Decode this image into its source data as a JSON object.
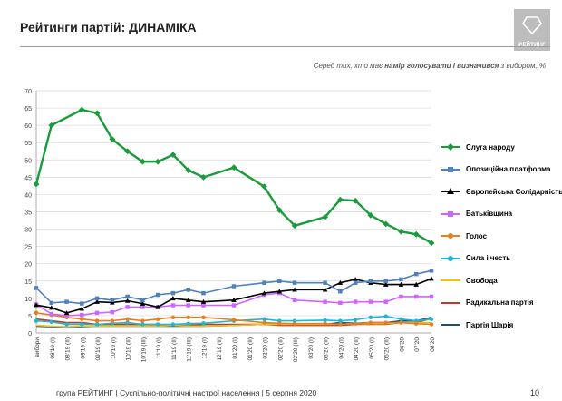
{
  "header": {
    "title": "Рейтинги партій: ДИНАМІКА",
    "subtitle_prefix": "Серед тих, хто має ",
    "subtitle_bold": "намір голосувати і визначився",
    "subtitle_suffix": " з вибором, %",
    "logo_text": "РЕЙТИНГ"
  },
  "footer": {
    "text": "група РЕЙТИНГ | Суспільно-політичні настрої населення | 5 серпня 2020",
    "page": "10"
  },
  "chart_data": {
    "type": "line",
    "ylim": [
      0,
      70
    ],
    "yticks": [
      "0",
      "5",
      "10",
      "15",
      "20",
      "25",
      "30",
      "35",
      "40",
      "45",
      "50",
      "55",
      "60",
      "65",
      "70"
    ],
    "grid": true,
    "legend_position": "right",
    "categories": [
      "вибори",
      "08'19 (I)",
      "08'19 (II)",
      "09'19 (I)",
      "09'19 (II)",
      "10'19 (I)",
      "10'19 (II)",
      "10'19 (III)",
      "11'19 (I)",
      "11'19 (II)",
      "11'19 (III)",
      "12'19 (I)",
      "12'19 (II)",
      "01'20 (I)",
      "01'20 (II)",
      "02'20 (I)",
      "02'20 (II)",
      "02'20 (III)",
      "03'20 (I)",
      "03'20 (II)",
      "04'20 (I)",
      "04'20 (II)",
      "05'20 (I)",
      "05'20 (II)",
      "06'20",
      "07'20",
      "08'20"
    ],
    "series": [
      {
        "name": "Слуга народу",
        "color": "#1a9b3c",
        "marker": "diamond",
        "values": [
          43,
          60,
          null,
          64.5,
          63.5,
          56,
          52.5,
          49.5,
          49.5,
          51.5,
          47,
          45,
          null,
          47.8,
          null,
          42.3,
          35.5,
          31,
          null,
          33.5,
          38.5,
          38.2,
          34,
          31.5,
          29.3,
          28.5,
          26
        ]
      },
      {
        "name": "Опозиційна платформа",
        "color": "#4f81bd",
        "marker": "square",
        "values": [
          13,
          8.7,
          9,
          8.5,
          10,
          9.5,
          10.5,
          9.5,
          11,
          11.5,
          12.5,
          11.5,
          null,
          13.5,
          null,
          14.5,
          15,
          14.5,
          null,
          14.5,
          12,
          14.5,
          15,
          15,
          15.5,
          17,
          18
        ]
      },
      {
        "name": "Європейська Солідарність",
        "color": "#000000",
        "marker": "triangle",
        "values": [
          8.1,
          7.3,
          5.8,
          7,
          9,
          8.8,
          9.3,
          8.5,
          7.5,
          10,
          9.5,
          9,
          null,
          9.5,
          null,
          11.5,
          12,
          12.5,
          null,
          12.5,
          14.5,
          15.5,
          14.5,
          14,
          14,
          14,
          15.7
        ]
      },
      {
        "name": "Батьківщина",
        "color": "#cc66ff",
        "marker": "square",
        "values": [
          8.2,
          5.5,
          5,
          5.2,
          5.8,
          6,
          7.5,
          7.5,
          7.5,
          8,
          8,
          8,
          null,
          8,
          null,
          11,
          11.5,
          9.5,
          null,
          9,
          8.7,
          9,
          9,
          9,
          10.5,
          10.5,
          10.5
        ]
      },
      {
        "name": "Голос",
        "color": "#e67e22",
        "marker": "circle",
        "values": [
          5.8,
          5.2,
          4.5,
          4,
          3.5,
          3.5,
          4,
          3.5,
          4,
          4.5,
          4.5,
          4.5,
          null,
          3.8,
          null,
          3,
          2.8,
          2.7,
          null,
          2.7,
          2.5,
          2.7,
          3,
          3,
          3,
          2.7,
          2.5
        ]
      },
      {
        "name": "Сила і честь",
        "color": "#1fb6d4",
        "marker": "circle",
        "values": [
          3.5,
          3.2,
          2.5,
          2.5,
          2.5,
          2.8,
          3,
          2.5,
          2.5,
          2.5,
          2.7,
          2.8,
          null,
          3.5,
          null,
          4,
          3.5,
          3.5,
          null,
          3.7,
          3.5,
          3.8,
          4.5,
          4.8,
          4,
          3.5,
          4
        ]
      },
      {
        "name": "Свобода",
        "color": "#f1c40f",
        "marker": "none",
        "values": [
          2.2,
          2,
          1.8,
          2,
          2,
          2,
          2,
          2,
          2,
          2.2,
          2,
          2,
          null,
          2.2,
          null,
          2.5,
          2.5,
          2.5,
          null,
          2.5,
          2.5,
          2.7,
          2.7,
          2.7,
          3,
          3,
          3
        ]
      },
      {
        "name": "Радикальна партія",
        "color": "#c0392b",
        "marker": "none",
        "values": [
          4,
          3.5,
          3,
          3,
          2.5,
          2.5,
          2.5,
          2.5,
          2.5,
          2.2,
          2.2,
          2.5,
          null,
          2.5,
          null,
          2.5,
          2.2,
          2.2,
          null,
          2.2,
          2.2,
          2.5,
          2.5,
          2.5,
          3,
          3,
          4.2
        ]
      },
      {
        "name": "Партія Шарія",
        "color": "#1f4e79",
        "marker": "none",
        "values": [
          2,
          1.8,
          1.5,
          1.8,
          2,
          2,
          2,
          2,
          2,
          2,
          2,
          2,
          null,
          2.2,
          null,
          2.5,
          2.5,
          2.5,
          null,
          2.5,
          3,
          2.8,
          3,
          3,
          3.5,
          3.5,
          4.5
        ]
      }
    ]
  }
}
